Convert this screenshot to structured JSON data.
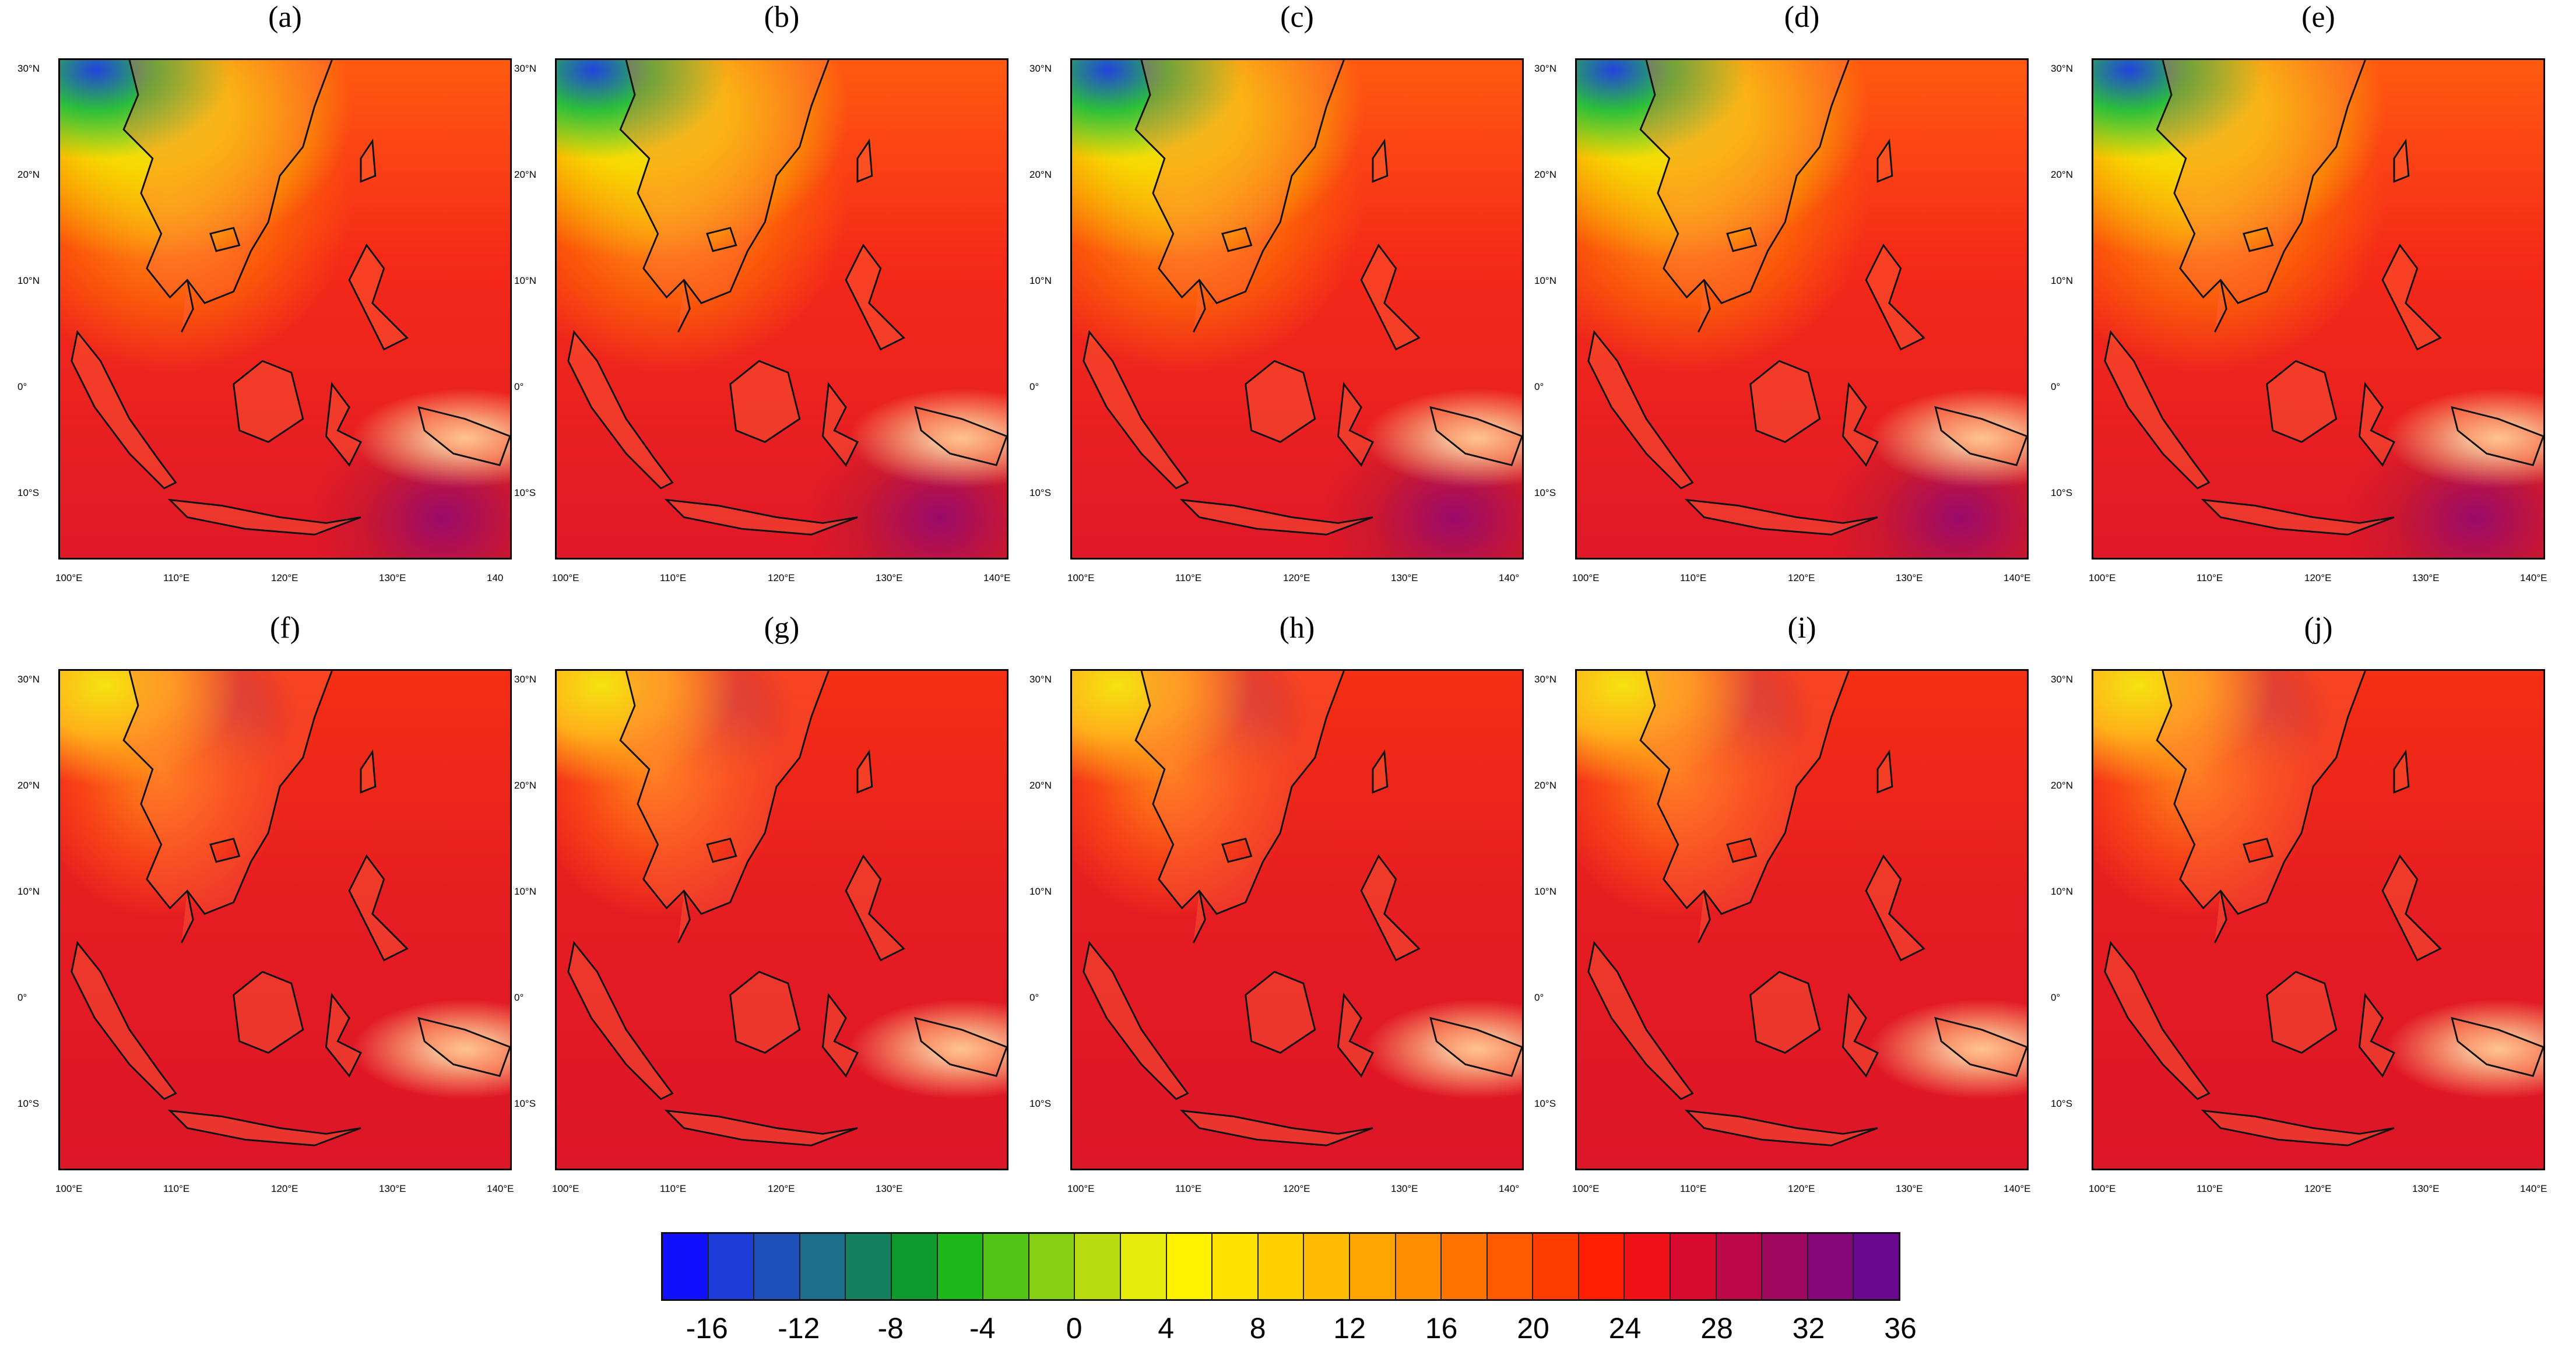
{
  "panels": [
    {
      "label": "(a)",
      "style": "cool"
    },
    {
      "label": "(b)",
      "style": "cool"
    },
    {
      "label": "(c)",
      "style": "cool"
    },
    {
      "label": "(d)",
      "style": "cool"
    },
    {
      "label": "(e)",
      "style": "cool"
    },
    {
      "label": "(f)",
      "style": "warm"
    },
    {
      "label": "(g)",
      "style": "warm"
    },
    {
      "label": "(h)",
      "style": "warm"
    },
    {
      "label": "(i)",
      "style": "warm"
    },
    {
      "label": "(j)",
      "style": "warm"
    }
  ],
  "lat_ticks": [
    "30°N",
    "20°N",
    "10°N",
    "0°",
    "10°S"
  ],
  "lon_ticks": [
    "100°E",
    "110°E",
    "120°E",
    "130°E",
    "140°E"
  ],
  "lon_ticks_panel_a": [
    "100°E",
    "110°E",
    "120°E",
    "130°E",
    "140"
  ],
  "lon_ticks_panel_c": [
    "100°E",
    "110°E",
    "120°E",
    "130°E",
    "140°"
  ],
  "lon_ticks_panel_g": [
    "100°E",
    "110°E",
    "120°E",
    "130°E"
  ],
  "lon_ticks_panel_h": [
    "100°E",
    "110°E",
    "120°E",
    "130°E",
    "140°"
  ],
  "colorbar": {
    "colors": [
      "#1010ff",
      "#1d3cd8",
      "#1f4fb8",
      "#1b6f8a",
      "#148060",
      "#0e9a2e",
      "#1fb81a",
      "#52c416",
      "#86cf12",
      "#b8dc10",
      "#e6ec0c",
      "#fff200",
      "#ffe200",
      "#ffd000",
      "#ffbc00",
      "#ffa500",
      "#ff8e00",
      "#ff7400",
      "#ff5a00",
      "#ff3c00",
      "#ff1e00",
      "#f01018",
      "#d80a30",
      "#bc0848",
      "#a00860",
      "#860878",
      "#6a0890"
    ],
    "tick_labels": [
      "-16",
      "-12",
      "-8",
      "-4",
      "0",
      "4",
      "8",
      "12",
      "16",
      "20",
      "24",
      "28",
      "32",
      "36"
    ]
  }
}
